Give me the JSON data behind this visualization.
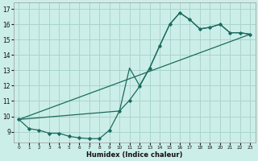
{
  "xlabel": "Humidex (Indice chaleur)",
  "background_color": "#cceee8",
  "grid_color": "#aad4ce",
  "line_color": "#1a6b5e",
  "xlim": [
    -0.5,
    23.5
  ],
  "ylim": [
    8.3,
    17.4
  ],
  "yticks": [
    9,
    10,
    11,
    12,
    13,
    14,
    15,
    16,
    17
  ],
  "xticks": [
    0,
    1,
    2,
    3,
    4,
    5,
    6,
    7,
    8,
    9,
    10,
    11,
    12,
    13,
    14,
    15,
    16,
    17,
    18,
    19,
    20,
    21,
    22,
    23
  ],
  "series1_x": [
    0,
    1,
    2,
    3,
    4,
    5,
    6,
    7,
    8,
    9,
    10,
    11,
    12,
    13,
    14,
    15,
    16,
    17,
    18,
    19,
    20,
    21,
    22,
    23
  ],
  "series1_y": [
    9.8,
    9.2,
    9.1,
    8.9,
    8.9,
    8.7,
    8.6,
    8.55,
    8.55,
    9.1,
    10.35,
    11.05,
    11.95,
    13.15,
    14.6,
    16.0,
    16.75,
    16.3,
    15.7,
    15.8,
    16.0,
    15.45,
    15.45,
    15.35
  ],
  "series2_x": [
    0,
    10,
    11,
    12,
    13,
    14,
    15,
    16,
    17,
    18,
    19,
    20,
    21,
    22,
    23
  ],
  "series2_y": [
    9.8,
    10.35,
    13.15,
    12.0,
    13.15,
    14.6,
    16.0,
    16.75,
    16.3,
    15.7,
    15.8,
    16.0,
    15.45,
    15.45,
    15.35
  ],
  "series3_x": [
    0,
    23
  ],
  "series3_y": [
    9.8,
    15.35
  ]
}
